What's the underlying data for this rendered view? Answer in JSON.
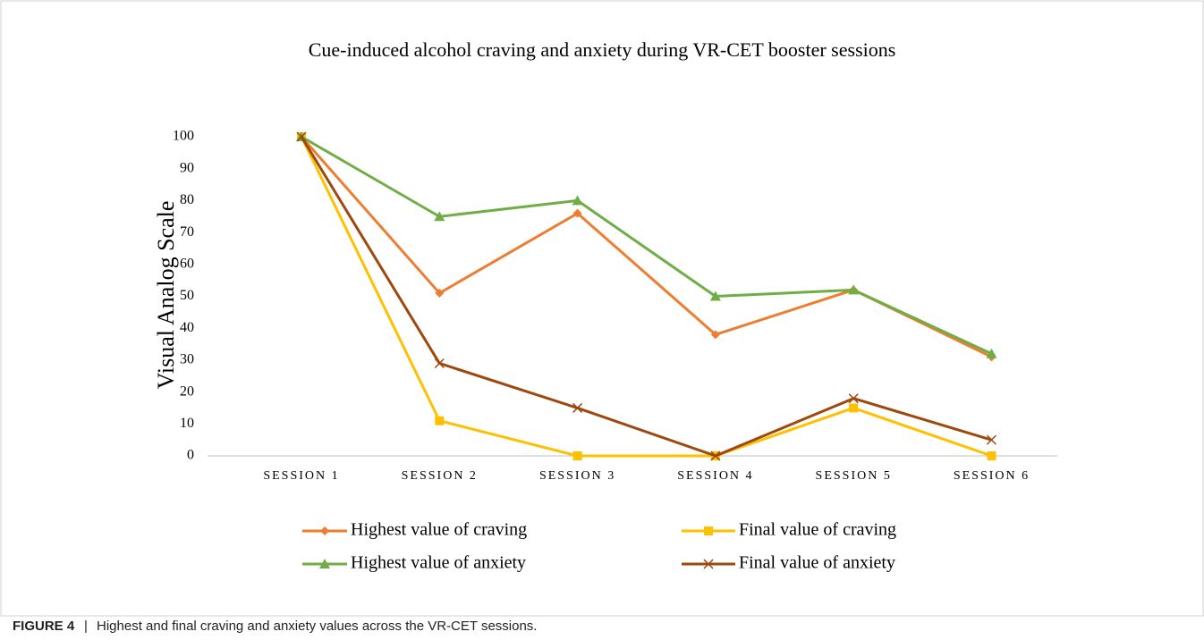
{
  "chart_data": {
    "type": "line",
    "title": "Cue-induced alcohol craving and anxiety during VR-CET booster sessions",
    "ylabel": "Visual Analog Scale",
    "categories": [
      "SESSION 1",
      "SESSION 2",
      "SESSION 3",
      "SESSION 4",
      "SESSION 5",
      "SESSION 6"
    ],
    "series": [
      {
        "name": "Highest value of craving",
        "color": "#ED7D31",
        "marker": "diamond",
        "values": [
          100,
          51,
          76,
          38,
          52,
          31
        ]
      },
      {
        "name": "Final value of craving",
        "color": "#FFC000",
        "marker": "square",
        "values": [
          100,
          11,
          0,
          0,
          15,
          0
        ]
      },
      {
        "name": "Highest value of anxiety",
        "color": "#70AD47",
        "marker": "triangle",
        "values": [
          100,
          75,
          80,
          50,
          52,
          32
        ]
      },
      {
        "name": "Final value of anxiety",
        "color": "#9E480E",
        "marker": "x",
        "values": [
          100,
          29,
          15,
          0,
          18,
          5
        ]
      }
    ],
    "ylim": [
      0,
      100
    ],
    "yticks": [
      0,
      10,
      20,
      30,
      40,
      50,
      60,
      70,
      80,
      90,
      100
    ],
    "grid": false,
    "legend": "bottom"
  },
  "caption": {
    "label": "FIGURE 4",
    "separator": "|",
    "text": "Highest and final craving and anxiety values across the VR-CET sessions."
  }
}
